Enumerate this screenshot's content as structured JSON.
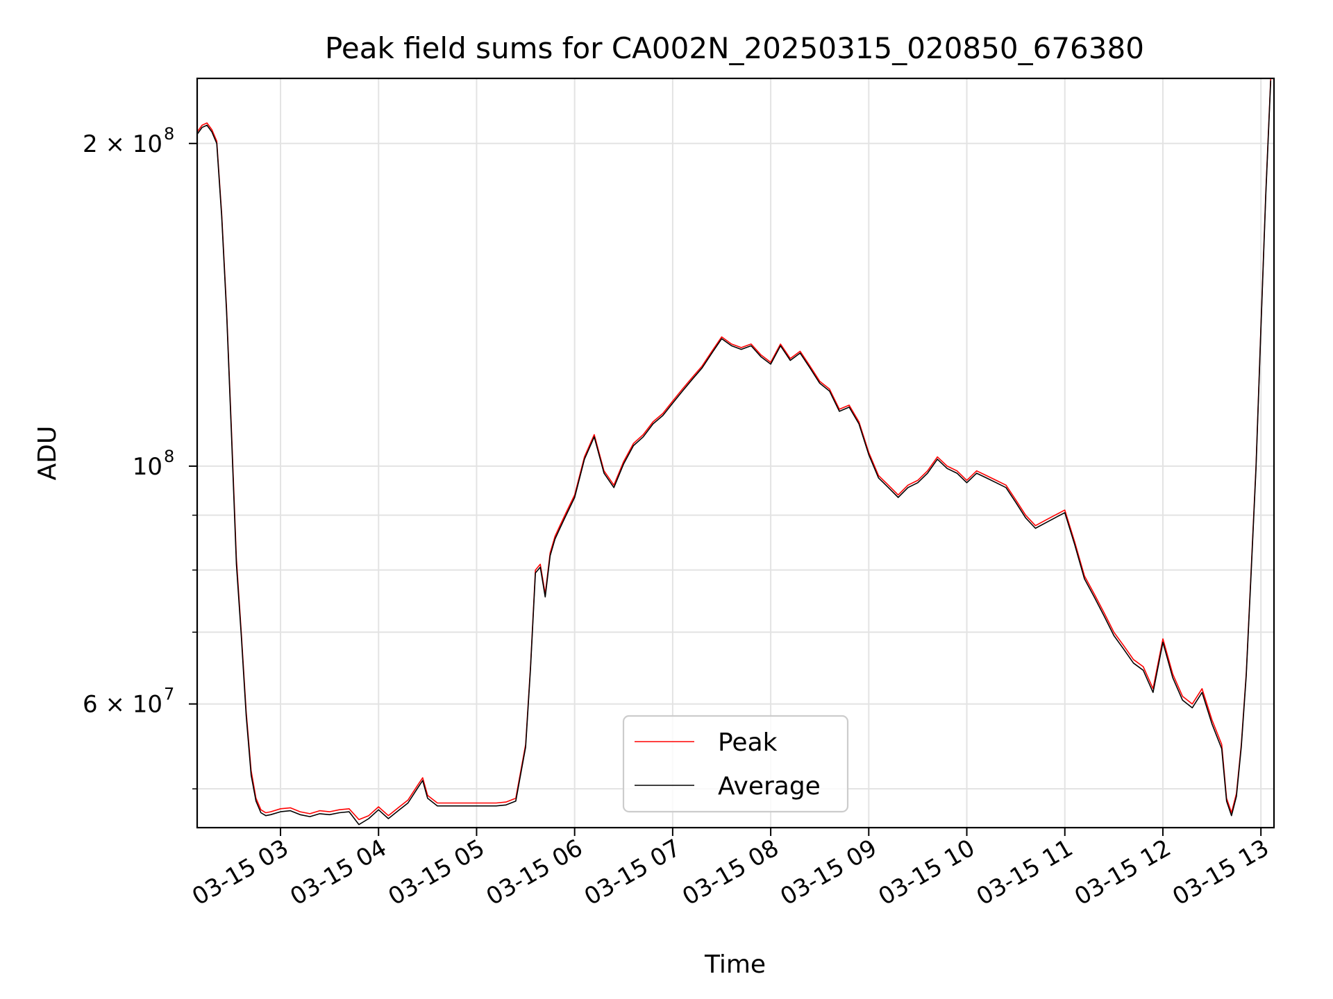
{
  "chart_data": {
    "type": "line",
    "title": "Peak field sums for CA002N_20250315_020850_676380",
    "xlabel": "Time",
    "ylabel": "ADU",
    "x_scale": "time",
    "y_scale": "log",
    "xlim": [
      "03-15 02:09",
      "03-15 13:08"
    ],
    "ylim": [
      46000000,
      230000000
    ],
    "grid": true,
    "legend_placement": "lower center",
    "x_ticks": [
      {
        "value": "03-15 03:00",
        "label": "03-15 03"
      },
      {
        "value": "03-15 04:00",
        "label": "03-15 04"
      },
      {
        "value": "03-15 05:00",
        "label": "03-15 05"
      },
      {
        "value": "03-15 06:00",
        "label": "03-15 06"
      },
      {
        "value": "03-15 07:00",
        "label": "03-15 07"
      },
      {
        "value": "03-15 08:00",
        "label": "03-15 08"
      },
      {
        "value": "03-15 09:00",
        "label": "03-15 09"
      },
      {
        "value": "03-15 10:00",
        "label": "03-15 10"
      },
      {
        "value": "03-15 11:00",
        "label": "03-15 11"
      },
      {
        "value": "03-15 12:00",
        "label": "03-15 12"
      },
      {
        "value": "03-15 13:00",
        "label": "03-15 13"
      }
    ],
    "y_major_ticks": [
      {
        "value": 100000000,
        "label": "10",
        "exp": "8"
      },
      {
        "value": 60000000,
        "label": "6 × 10",
        "exp": "7"
      },
      {
        "value": 200000000,
        "label": "2 × 10",
        "exp": "8"
      }
    ],
    "y_minor_ticks": [
      50000000,
      70000000,
      80000000,
      90000000
    ],
    "series": [
      {
        "name": "Peak",
        "color": "#ff0000",
        "x": [
          "03-15 02:09",
          "03-15 02:12",
          "03-15 02:15",
          "03-15 02:18",
          "03-15 02:21",
          "03-15 02:24",
          "03-15 02:27",
          "03-15 02:30",
          "03-15 02:33",
          "03-15 02:36",
          "03-15 02:39",
          "03-15 02:42",
          "03-15 02:45",
          "03-15 02:48",
          "03-15 02:51",
          "03-15 02:54",
          "03-15 03:00",
          "03-15 03:06",
          "03-15 03:12",
          "03-15 03:18",
          "03-15 03:24",
          "03-15 03:30",
          "03-15 03:36",
          "03-15 03:42",
          "03-15 03:48",
          "03-15 03:54",
          "03-15 04:00",
          "03-15 04:06",
          "03-15 04:12",
          "03-15 04:18",
          "03-15 04:24",
          "03-15 04:27",
          "03-15 04:30",
          "03-15 04:36",
          "03-15 04:42",
          "03-15 04:48",
          "03-15 04:54",
          "03-15 05:00",
          "03-15 05:06",
          "03-15 05:12",
          "03-15 05:18",
          "03-15 05:24",
          "03-15 05:30",
          "03-15 05:33",
          "03-15 05:36",
          "03-15 05:39",
          "03-15 05:42",
          "03-15 05:45",
          "03-15 05:48",
          "03-15 05:51",
          "03-15 05:54",
          "03-15 06:00",
          "03-15 06:06",
          "03-15 06:12",
          "03-15 06:18",
          "03-15 06:24",
          "03-15 06:30",
          "03-15 06:36",
          "03-15 06:42",
          "03-15 06:48",
          "03-15 06:54",
          "03-15 07:00",
          "03-15 07:06",
          "03-15 07:12",
          "03-15 07:18",
          "03-15 07:24",
          "03-15 07:30",
          "03-15 07:36",
          "03-15 07:42",
          "03-15 07:48",
          "03-15 07:54",
          "03-15 08:00",
          "03-15 08:06",
          "03-15 08:12",
          "03-15 08:18",
          "03-15 08:24",
          "03-15 08:30",
          "03-15 08:36",
          "03-15 08:42",
          "03-15 08:48",
          "03-15 08:54",
          "03-15 09:00",
          "03-15 09:06",
          "03-15 09:12",
          "03-15 09:18",
          "03-15 09:24",
          "03-15 09:30",
          "03-15 09:36",
          "03-15 09:42",
          "03-15 09:48",
          "03-15 09:54",
          "03-15 10:00",
          "03-15 10:06",
          "03-15 10:12",
          "03-15 10:18",
          "03-15 10:24",
          "03-15 10:30",
          "03-15 10:36",
          "03-15 10:42",
          "03-15 10:48",
          "03-15 10:54",
          "03-15 11:00",
          "03-15 11:06",
          "03-15 11:12",
          "03-15 11:18",
          "03-15 11:24",
          "03-15 11:30",
          "03-15 11:36",
          "03-15 11:42",
          "03-15 11:48",
          "03-15 11:54",
          "03-15 12:00",
          "03-15 12:06",
          "03-15 12:12",
          "03-15 12:18",
          "03-15 12:24",
          "03-15 12:30",
          "03-15 12:36",
          "03-15 12:39",
          "03-15 12:42",
          "03-15 12:45",
          "03-15 12:48",
          "03-15 12:51",
          "03-15 12:54",
          "03-15 12:57",
          "03-15 13:00",
          "03-15 13:03",
          "03-15 13:06"
        ],
        "values": [
          205000000,
          208000000,
          209000000,
          206000000,
          201000000,
          172000000,
          140000000,
          108000000,
          82000000,
          70000000,
          59000000,
          52000000,
          49000000,
          47800000,
          47500000,
          47600000,
          47900000,
          48000000,
          47600000,
          47400000,
          47700000,
          47600000,
          47800000,
          47900000,
          46800000,
          47200000,
          48100000,
          47200000,
          48000000,
          48800000,
          50400000,
          51200000,
          49300000,
          48500000,
          48500000,
          48500000,
          48500000,
          48500000,
          48500000,
          48500000,
          48600000,
          49000000,
          55000000,
          65000000,
          80000000,
          81000000,
          76000000,
          83000000,
          86000000,
          88000000,
          90000000,
          94000000,
          102000000,
          107000000,
          99000000,
          96000000,
          101000000,
          105000000,
          107000000,
          110000000,
          112000000,
          115000000,
          118000000,
          121000000,
          124000000,
          128000000,
          132000000,
          130000000,
          129000000,
          130000000,
          127000000,
          125000000,
          130000000,
          126000000,
          128000000,
          124000000,
          120000000,
          118000000,
          113000000,
          114000000,
          110000000,
          103000000,
          98000000,
          96000000,
          94000000,
          96000000,
          97000000,
          99000000,
          102000000,
          100000000,
          99000000,
          97000000,
          99000000,
          98000000,
          97000000,
          96000000,
          93000000,
          90000000,
          88000000,
          89000000,
          90000000,
          91000000,
          85000000,
          79000000,
          76000000,
          73000000,
          70000000,
          68000000,
          66000000,
          65000000,
          62000000,
          69000000,
          64000000,
          61000000,
          60000000,
          62000000,
          58000000,
          55000000,
          49000000,
          47500000,
          49500000,
          55000000,
          64000000,
          80000000,
          100000000,
          135000000,
          180000000,
          230000000
        ]
      },
      {
        "name": "Average",
        "color": "#000000",
        "x": [
          "03-15 02:09",
          "03-15 02:12",
          "03-15 02:15",
          "03-15 02:18",
          "03-15 02:21",
          "03-15 02:24",
          "03-15 02:27",
          "03-15 02:30",
          "03-15 02:33",
          "03-15 02:36",
          "03-15 02:39",
          "03-15 02:42",
          "03-15 02:45",
          "03-15 02:48",
          "03-15 02:51",
          "03-15 02:54",
          "03-15 03:00",
          "03-15 03:06",
          "03-15 03:12",
          "03-15 03:18",
          "03-15 03:24",
          "03-15 03:30",
          "03-15 03:36",
          "03-15 03:42",
          "03-15 03:48",
          "03-15 03:54",
          "03-15 04:00",
          "03-15 04:06",
          "03-15 04:12",
          "03-15 04:18",
          "03-15 04:24",
          "03-15 04:27",
          "03-15 04:30",
          "03-15 04:36",
          "03-15 04:42",
          "03-15 04:48",
          "03-15 04:54",
          "03-15 05:00",
          "03-15 05:06",
          "03-15 05:12",
          "03-15 05:18",
          "03-15 05:24",
          "03-15 05:30",
          "03-15 05:33",
          "03-15 05:36",
          "03-15 05:39",
          "03-15 05:42",
          "03-15 05:45",
          "03-15 05:48",
          "03-15 05:51",
          "03-15 05:54",
          "03-15 06:00",
          "03-15 06:06",
          "03-15 06:12",
          "03-15 06:18",
          "03-15 06:24",
          "03-15 06:30",
          "03-15 06:36",
          "03-15 06:42",
          "03-15 06:48",
          "03-15 06:54",
          "03-15 07:00",
          "03-15 07:06",
          "03-15 07:12",
          "03-15 07:18",
          "03-15 07:24",
          "03-15 07:30",
          "03-15 07:36",
          "03-15 07:42",
          "03-15 07:48",
          "03-15 07:54",
          "03-15 08:00",
          "03-15 08:06",
          "03-15 08:12",
          "03-15 08:18",
          "03-15 08:24",
          "03-15 08:30",
          "03-15 08:36",
          "03-15 08:42",
          "03-15 08:48",
          "03-15 08:54",
          "03-15 09:00",
          "03-15 09:06",
          "03-15 09:12",
          "03-15 09:18",
          "03-15 09:24",
          "03-15 09:30",
          "03-15 09:36",
          "03-15 09:42",
          "03-15 09:48",
          "03-15 09:54",
          "03-15 10:00",
          "03-15 10:06",
          "03-15 10:12",
          "03-15 10:18",
          "03-15 10:24",
          "03-15 10:30",
          "03-15 10:36",
          "03-15 10:42",
          "03-15 10:48",
          "03-15 10:54",
          "03-15 11:00",
          "03-15 11:06",
          "03-15 11:12",
          "03-15 11:18",
          "03-15 11:24",
          "03-15 11:30",
          "03-15 11:36",
          "03-15 11:42",
          "03-15 11:48",
          "03-15 11:54",
          "03-15 12:00",
          "03-15 12:06",
          "03-15 12:12",
          "03-15 12:18",
          "03-15 12:24",
          "03-15 12:30",
          "03-15 12:36",
          "03-15 12:39",
          "03-15 12:42",
          "03-15 12:45",
          "03-15 12:48",
          "03-15 12:51",
          "03-15 12:54",
          "03-15 12:57",
          "03-15 13:00",
          "03-15 13:03",
          "03-15 13:06"
        ],
        "values": [
          204000000,
          207000000,
          208000000,
          205000000,
          200000000,
          171000000,
          139000000,
          107000000,
          81000000,
          69500000,
          58500000,
          51500000,
          48700000,
          47500000,
          47200000,
          47300000,
          47600000,
          47700000,
          47300000,
          47100000,
          47400000,
          47300000,
          47500000,
          47600000,
          46300000,
          46900000,
          47800000,
          46900000,
          47700000,
          48500000,
          50100000,
          50900000,
          49000000,
          48200000,
          48200000,
          48200000,
          48200000,
          48200000,
          48200000,
          48200000,
          48300000,
          48700000,
          54700000,
          64700000,
          79500000,
          80500000,
          75500000,
          82500000,
          85500000,
          87500000,
          89500000,
          93500000,
          101500000,
          106500000,
          98500000,
          95500000,
          100500000,
          104500000,
          106500000,
          109500000,
          111500000,
          114500000,
          117500000,
          120500000,
          123500000,
          127500000,
          131500000,
          129500000,
          128500000,
          129500000,
          126500000,
          124500000,
          129500000,
          125500000,
          127500000,
          123500000,
          119500000,
          117500000,
          112500000,
          113500000,
          109500000,
          102500000,
          97500000,
          95500000,
          93500000,
          95500000,
          96500000,
          98500000,
          101500000,
          99500000,
          98500000,
          96500000,
          98500000,
          97500000,
          96500000,
          95500000,
          92500000,
          89500000,
          87500000,
          88500000,
          89500000,
          90500000,
          84500000,
          78500000,
          75500000,
          72500000,
          69500000,
          67500000,
          65500000,
          64500000,
          61500000,
          68500000,
          63500000,
          60500000,
          59500000,
          61500000,
          57500000,
          54500000,
          48700000,
          47200000,
          49200000,
          54700000,
          63700000,
          79500000,
          99500000,
          134500000,
          179000000,
          229000000
        ]
      }
    ]
  }
}
